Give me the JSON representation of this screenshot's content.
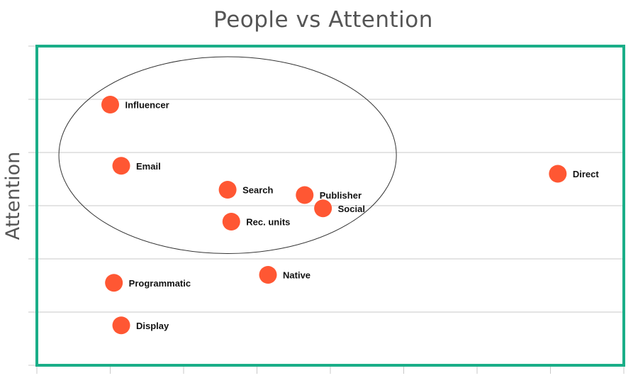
{
  "chart_data": {
    "type": "scatter",
    "title": "People vs Attention",
    "xlabel": "",
    "ylabel": "Attention",
    "xlim": [
      0,
      8
    ],
    "ylim": [
      0,
      6
    ],
    "grid": "horizontal",
    "marker_color": "#FF5733",
    "frame_color": "#1AAE88",
    "points": [
      {
        "label": "Influencer",
        "x": 1.0,
        "y": 4.9
      },
      {
        "label": "Email",
        "x": 1.15,
        "y": 3.75
      },
      {
        "label": "Direct",
        "x": 7.1,
        "y": 3.6
      },
      {
        "label": "Search",
        "x": 2.6,
        "y": 3.3
      },
      {
        "label": "Publisher",
        "x": 3.65,
        "y": 3.2
      },
      {
        "label": "Social",
        "x": 3.9,
        "y": 2.95
      },
      {
        "label": "Rec. units",
        "x": 2.65,
        "y": 2.7
      },
      {
        "label": "Native",
        "x": 3.15,
        "y": 1.7
      },
      {
        "label": "Programmatic",
        "x": 1.05,
        "y": 1.55
      },
      {
        "label": "Display",
        "x": 1.15,
        "y": 0.75
      }
    ],
    "highlight_ellipse": {
      "center_x": 2.6,
      "center_y": 3.95,
      "radius_x": 2.3,
      "radius_y": 1.85
    }
  }
}
